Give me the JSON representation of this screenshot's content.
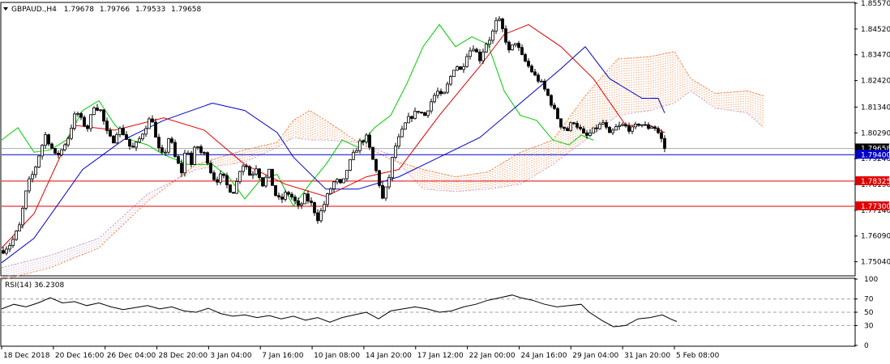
{
  "header": {
    "symbol": "GBPAUD.,H4",
    "open": "1.79678",
    "high": "1.79766",
    "low": "1.79533",
    "close": "1.79658"
  },
  "rsi_header": "RSI(14) 36.2308",
  "colors": {
    "bull": "#ffffff",
    "bear": "#000000",
    "tenkan": "#e00000",
    "kijun": "#0000cc",
    "chikou": "#00cc00",
    "kumo_up": "#f08040",
    "kumo_down": "#c8a0c8",
    "level_blue": "#0000cc",
    "level_red": "#e00000",
    "rsi": "#000000"
  },
  "chart_data": [
    {
      "type": "candlestick",
      "indicator": "Ichimoku",
      "ylim": [
        1.745,
        1.8557
      ],
      "y_ticks": [
        "1.85570",
        "1.84520",
        "1.83470",
        "1.82420",
        "1.81340",
        "1.80290",
        "1.79240",
        "1.78190",
        "1.77140",
        "1.76090",
        "1.75040"
      ],
      "x_ticks": [
        "18 Dec 2018",
        "20 Dec 16:00",
        "26 Dec 04:00",
        "28 Dec 20:00",
        "3 Jan 04:00",
        "7 Jan 16:00",
        "10 Jan 08:00",
        "14 Jan 20:00",
        "17 Jan 12:00",
        "22 Jan 00:00",
        "24 Jan 16:00",
        "29 Jan 04:00",
        "31 Jan 20:00",
        "5 Feb 08:00"
      ],
      "current_price": "1.79658",
      "levels": [
        {
          "value": 1.794,
          "label": "1.79400",
          "color": "#0000cc"
        },
        {
          "value": 1.78325,
          "label": "1.78325",
          "color": "#e00000"
        },
        {
          "value": 1.773,
          "label": "1.77300",
          "color": "#e00000"
        }
      ],
      "close_path": [
        [
          0,
          1.755
        ],
        [
          10,
          1.758
        ],
        [
          20,
          1.765
        ],
        [
          30,
          1.782
        ],
        [
          38,
          1.787
        ],
        [
          45,
          1.795
        ],
        [
          52,
          1.802
        ],
        [
          58,
          1.798
        ],
        [
          65,
          1.793
        ],
        [
          72,
          1.796
        ],
        [
          80,
          1.801
        ],
        [
          90,
          1.812
        ],
        [
          98,
          1.807
        ],
        [
          104,
          1.805
        ],
        [
          112,
          1.814
        ],
        [
          120,
          1.812
        ],
        [
          128,
          1.803
        ],
        [
          135,
          1.799
        ],
        [
          142,
          1.805
        ],
        [
          150,
          1.802
        ],
        [
          158,
          1.796
        ],
        [
          166,
          1.799
        ],
        [
          175,
          1.805
        ],
        [
          183,
          1.81
        ],
        [
          190,
          1.797
        ],
        [
          198,
          1.793
        ],
        [
          205,
          1.802
        ],
        [
          212,
          1.793
        ],
        [
          220,
          1.787
        ],
        [
          226,
          1.798
        ],
        [
          232,
          1.79
        ],
        [
          238,
          1.799
        ],
        [
          243,
          1.795
        ],
        [
          250,
          1.794
        ],
        [
          255,
          1.788
        ],
        [
          262,
          1.783
        ],
        [
          270,
          1.786
        ],
        [
          278,
          1.78
        ],
        [
          285,
          1.779
        ],
        [
          292,
          1.788
        ],
        [
          298,
          1.791
        ],
        [
          305,
          1.785
        ],
        [
          312,
          1.789
        ],
        [
          320,
          1.782
        ],
        [
          328,
          1.787
        ],
        [
          335,
          1.778
        ],
        [
          342,
          1.775
        ],
        [
          350,
          1.779
        ],
        [
          358,
          1.776
        ],
        [
          365,
          1.772
        ],
        [
          372,
          1.777
        ],
        [
          380,
          1.774
        ],
        [
          388,
          1.768
        ],
        [
          395,
          1.773
        ],
        [
          402,
          1.779
        ],
        [
          410,
          1.784
        ],
        [
          418,
          1.781
        ],
        [
          425,
          1.789
        ],
        [
          432,
          1.794
        ],
        [
          440,
          1.799
        ],
        [
          448,
          1.801
        ],
        [
          455,
          1.793
        ],
        [
          462,
          1.785
        ],
        [
          468,
          1.776
        ],
        [
          475,
          1.783
        ],
        [
          482,
          1.796
        ],
        [
          490,
          1.802
        ],
        [
          498,
          1.808
        ],
        [
          505,
          1.81
        ],
        [
          512,
          1.812
        ],
        [
          520,
          1.81
        ],
        [
          527,
          1.815
        ],
        [
          535,
          1.82
        ],
        [
          542,
          1.817
        ],
        [
          550,
          1.824
        ],
        [
          558,
          1.831
        ],
        [
          565,
          1.828
        ],
        [
          572,
          1.835
        ],
        [
          580,
          1.838
        ],
        [
          588,
          1.833
        ],
        [
          595,
          1.839
        ],
        [
          602,
          1.842
        ],
        [
          610,
          1.85
        ],
        [
          617,
          1.844
        ],
        [
          624,
          1.836
        ],
        [
          632,
          1.84
        ],
        [
          640,
          1.834
        ],
        [
          648,
          1.83
        ],
        [
          656,
          1.826
        ],
        [
          664,
          1.823
        ],
        [
          672,
          1.818
        ],
        [
          680,
          1.812
        ],
        [
          688,
          1.806
        ],
        [
          696,
          1.804
        ],
        [
          703,
          1.808
        ],
        [
          710,
          1.805
        ],
        [
          718,
          1.801
        ],
        [
          725,
          1.803
        ],
        [
          732,
          1.805
        ],
        [
          740,
          1.807
        ],
        [
          748,
          1.802
        ],
        [
          756,
          1.805
        ],
        [
          765,
          1.806
        ],
        [
          775,
          1.804
        ],
        [
          785,
          1.807
        ],
        [
          795,
          1.805
        ],
        [
          802,
          1.806
        ],
        [
          808,
          1.803
        ],
        [
          814,
          1.799
        ],
        [
          818,
          1.7966
        ]
      ],
      "tenkan_path": [
        [
          0,
          1.756
        ],
        [
          40,
          1.77
        ],
        [
          90,
          1.806
        ],
        [
          140,
          1.804
        ],
        [
          200,
          1.809
        ],
        [
          250,
          1.804
        ],
        [
          300,
          1.79
        ],
        [
          350,
          1.782
        ],
        [
          400,
          1.777
        ],
        [
          450,
          1.785
        ],
        [
          490,
          1.788
        ],
        [
          540,
          1.81
        ],
        [
          590,
          1.83
        ],
        [
          620,
          1.843
        ],
        [
          650,
          1.847
        ],
        [
          690,
          1.838
        ],
        [
          730,
          1.825
        ],
        [
          770,
          1.806
        ],
        [
          800,
          1.806
        ],
        [
          818,
          1.803
        ]
      ],
      "kijun_path": [
        [
          0,
          1.75
        ],
        [
          40,
          1.76
        ],
        [
          100,
          1.788
        ],
        [
          150,
          1.8
        ],
        [
          200,
          1.808
        ],
        [
          260,
          1.815
        ],
        [
          300,
          1.812
        ],
        [
          340,
          1.803
        ],
        [
          360,
          1.793
        ],
        [
          400,
          1.78
        ],
        [
          440,
          1.78
        ],
        [
          490,
          1.785
        ],
        [
          540,
          1.793
        ],
        [
          590,
          1.801
        ],
        [
          640,
          1.815
        ],
        [
          690,
          1.829
        ],
        [
          720,
          1.838
        ],
        [
          750,
          1.825
        ],
        [
          790,
          1.817
        ],
        [
          810,
          1.817
        ],
        [
          818,
          1.811
        ]
      ],
      "chikou_path": [
        [
          0,
          1.8
        ],
        [
          20,
          1.805
        ],
        [
          40,
          1.795
        ],
        [
          60,
          1.796
        ],
        [
          80,
          1.8
        ],
        [
          100,
          1.812
        ],
        [
          120,
          1.816
        ],
        [
          140,
          1.806
        ],
        [
          160,
          1.8
        ],
        [
          180,
          1.798
        ],
        [
          200,
          1.794
        ],
        [
          230,
          1.79
        ],
        [
          260,
          1.79
        ],
        [
          280,
          1.785
        ],
        [
          300,
          1.776
        ],
        [
          320,
          1.784
        ],
        [
          340,
          1.786
        ],
        [
          360,
          1.773
        ],
        [
          380,
          1.782
        ],
        [
          400,
          1.79
        ],
        [
          420,
          1.8
        ],
        [
          440,
          1.797
        ],
        [
          460,
          1.805
        ],
        [
          480,
          1.81
        ],
        [
          500,
          1.823
        ],
        [
          520,
          1.838
        ],
        [
          540,
          1.847
        ],
        [
          560,
          1.838
        ],
        [
          580,
          1.842
        ],
        [
          600,
          1.839
        ],
        [
          620,
          1.82
        ],
        [
          640,
          1.81
        ],
        [
          660,
          1.808
        ],
        [
          680,
          1.8
        ],
        [
          700,
          1.798
        ],
        [
          715,
          1.802
        ],
        [
          730,
          1.8
        ]
      ],
      "kumo": {
        "span_a": [
          [
            0,
            1.743
          ],
          [
            60,
            1.748
          ],
          [
            120,
            1.756
          ],
          [
            180,
            1.775
          ],
          [
            240,
            1.79
          ],
          [
            300,
            1.796
          ],
          [
            340,
            1.799
          ],
          [
            360,
            1.808
          ],
          [
            380,
            1.812
          ],
          [
            400,
            1.808
          ],
          [
            440,
            1.799
          ],
          [
            480,
            1.792
          ],
          [
            520,
            1.788
          ],
          [
            560,
            1.785
          ],
          [
            600,
            1.787
          ],
          [
            640,
            1.795
          ],
          [
            680,
            1.8
          ],
          [
            720,
            1.818
          ],
          [
            760,
            1.833
          ],
          [
            800,
            1.834
          ],
          [
            830,
            1.836
          ],
          [
            850,
            1.825
          ],
          [
            880,
            1.819
          ],
          [
            920,
            1.82
          ],
          [
            940,
            1.818
          ]
        ],
        "span_b": [
          [
            0,
            1.748
          ],
          [
            60,
            1.753
          ],
          [
            120,
            1.76
          ],
          [
            180,
            1.778
          ],
          [
            240,
            1.788
          ],
          [
            300,
            1.791
          ],
          [
            340,
            1.797
          ],
          [
            360,
            1.801
          ],
          [
            380,
            1.8
          ],
          [
            400,
            1.8
          ],
          [
            440,
            1.799
          ],
          [
            480,
            1.794
          ],
          [
            520,
            1.78
          ],
          [
            560,
            1.779
          ],
          [
            600,
            1.78
          ],
          [
            640,
            1.782
          ],
          [
            680,
            1.79
          ],
          [
            720,
            1.8
          ],
          [
            760,
            1.81
          ],
          [
            800,
            1.812
          ],
          [
            830,
            1.815
          ],
          [
            850,
            1.82
          ],
          [
            880,
            1.813
          ],
          [
            920,
            1.811
          ],
          [
            940,
            1.805
          ]
        ]
      }
    },
    {
      "type": "line",
      "title": "RSI(14) 36.2308",
      "ylim": [
        0,
        100
      ],
      "y_ticks": [
        "100",
        "70",
        "50",
        "30",
        "0"
      ],
      "levels": [
        70,
        50,
        30
      ],
      "rsi_path": [
        [
          0,
          55
        ],
        [
          15,
          62
        ],
        [
          30,
          58
        ],
        [
          45,
          64
        ],
        [
          60,
          72
        ],
        [
          75,
          64
        ],
        [
          90,
          66
        ],
        [
          105,
          60
        ],
        [
          120,
          64
        ],
        [
          135,
          58
        ],
        [
          150,
          54
        ],
        [
          165,
          57
        ],
        [
          180,
          60
        ],
        [
          195,
          55
        ],
        [
          210,
          58
        ],
        [
          225,
          52
        ],
        [
          240,
          50
        ],
        [
          255,
          56
        ],
        [
          270,
          48
        ],
        [
          285,
          44
        ],
        [
          300,
          46
        ],
        [
          315,
          42
        ],
        [
          330,
          45
        ],
        [
          345,
          40
        ],
        [
          360,
          44
        ],
        [
          375,
          38
        ],
        [
          390,
          42
        ],
        [
          405,
          35
        ],
        [
          420,
          42
        ],
        [
          435,
          46
        ],
        [
          450,
          50
        ],
        [
          465,
          40
        ],
        [
          480,
          52
        ],
        [
          495,
          55
        ],
        [
          510,
          58
        ],
        [
          525,
          55
        ],
        [
          540,
          50
        ],
        [
          555,
          52
        ],
        [
          570,
          58
        ],
        [
          585,
          62
        ],
        [
          600,
          68
        ],
        [
          615,
          72
        ],
        [
          630,
          76
        ],
        [
          640,
          72
        ],
        [
          655,
          68
        ],
        [
          670,
          62
        ],
        [
          685,
          58
        ],
        [
          700,
          60
        ],
        [
          715,
          62
        ],
        [
          725,
          50
        ],
        [
          740,
          38
        ],
        [
          755,
          28
        ],
        [
          770,
          30
        ],
        [
          785,
          40
        ],
        [
          800,
          42
        ],
        [
          815,
          46
        ],
        [
          825,
          40
        ],
        [
          833,
          36
        ]
      ]
    }
  ]
}
